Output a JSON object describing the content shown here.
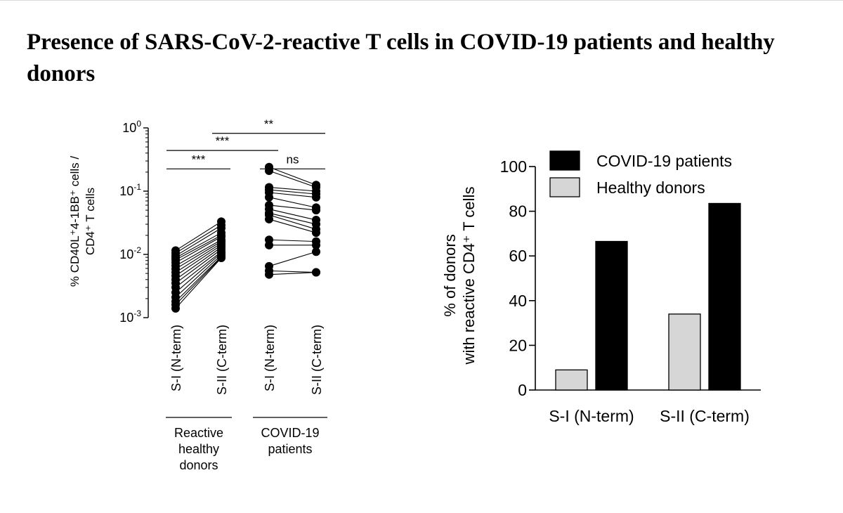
{
  "title": "Presence of SARS-CoV-2-reactive T cells in COVID-19 patients and healthy donors",
  "chart_data": [
    {
      "type": "scatter",
      "subtype": "paired-dot-plot",
      "yscale": "log",
      "ylim": [
        0.001,
        1
      ],
      "ylabel_line1": "% CD40L⁺4-1BB⁺ cells /",
      "ylabel_line2": "CD4⁺ T cells",
      "ytick_labels": [
        {
          "base": "10",
          "exp": "0",
          "value": 1
        },
        {
          "base": "10",
          "exp": "-1",
          "value": 0.1
        },
        {
          "base": "10",
          "exp": "-2",
          "value": 0.01
        },
        {
          "base": "10",
          "exp": "-3",
          "value": 0.001
        }
      ],
      "categories": [
        "S-I (N-term)",
        "S-II (C-term)",
        "S-I (N-term)",
        "S-II (C-term)"
      ],
      "groups": [
        {
          "label_lines": [
            "Reactive",
            "healthy",
            "donors"
          ],
          "categories": [
            0,
            1
          ]
        },
        {
          "label_lines": [
            "COVID-19",
            "patients"
          ],
          "categories": [
            2,
            3
          ]
        }
      ],
      "pairs_healthy": [
        [
          0.0115,
          0.033
        ],
        [
          0.0105,
          0.029
        ],
        [
          0.0095,
          0.026
        ],
        [
          0.0088,
          0.022
        ],
        [
          0.0082,
          0.02
        ],
        [
          0.0074,
          0.019
        ],
        [
          0.0066,
          0.017
        ],
        [
          0.0059,
          0.016
        ],
        [
          0.0052,
          0.015
        ],
        [
          0.0046,
          0.014
        ],
        [
          0.004,
          0.013
        ],
        [
          0.0035,
          0.012
        ],
        [
          0.003,
          0.011
        ],
        [
          0.0025,
          0.0105
        ],
        [
          0.0021,
          0.0098
        ],
        [
          0.0018,
          0.0092
        ],
        [
          0.0016,
          0.009
        ],
        [
          0.0014,
          0.0088
        ]
      ],
      "pairs_covid": [
        [
          0.24,
          0.125
        ],
        [
          0.21,
          0.115
        ],
        [
          0.115,
          0.1
        ],
        [
          0.105,
          0.09
        ],
        [
          0.095,
          0.08
        ],
        [
          0.08,
          0.055
        ],
        [
          0.06,
          0.05
        ],
        [
          0.052,
          0.035
        ],
        [
          0.045,
          0.03
        ],
        [
          0.042,
          0.025
        ],
        [
          0.036,
          0.022
        ],
        [
          0.017,
          0.016
        ],
        [
          0.014,
          0.014
        ],
        [
          0.0065,
          0.011
        ],
        [
          0.0055,
          0.0052
        ],
        [
          0.0048,
          0.0052
        ]
      ],
      "significance": [
        {
          "from": 0,
          "to": 1,
          "label": "***",
          "y": 0.225
        },
        {
          "from": 0,
          "to": 2,
          "label": "***",
          "y": 0.44
        },
        {
          "from": 1,
          "to": 3,
          "label": "**",
          "y": 0.82
        },
        {
          "from": 2,
          "to": 3,
          "label": "ns",
          "y": 0.225
        }
      ]
    },
    {
      "type": "bar",
      "categories": [
        "S-I (N-term)",
        "S-II (C-term)"
      ],
      "series": [
        {
          "name": "Healthy donors",
          "values": [
            9,
            34
          ],
          "color": "#d6d6d6"
        },
        {
          "name": "COVID-19 patients",
          "values": [
            66.5,
            83.5
          ],
          "color": "#000000"
        }
      ],
      "ylabel_line1": "% of donors",
      "ylabel_line2": "with reactive CD4⁺ T cells",
      "ylim": [
        0,
        100
      ],
      "yticks": [
        0,
        20,
        40,
        60,
        80,
        100
      ],
      "legend": [
        {
          "label": "COVID-19 patients",
          "color": "#000000"
        },
        {
          "label": "Healthy donors",
          "color": "#d6d6d6"
        }
      ],
      "legend_position": "top"
    }
  ]
}
